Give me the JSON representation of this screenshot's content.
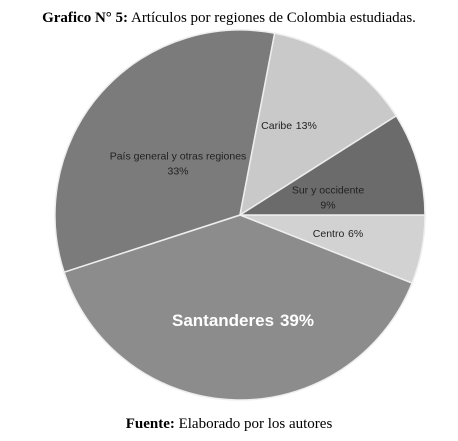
{
  "chart_data": {
    "type": "pie",
    "title_prefix": "Grafico N° 5:",
    "title": "Artículos por regiones de Colombia estudiadas.",
    "source_prefix": "Fuente:",
    "source": "Elaborado por los autores",
    "categories": [
      "Centro",
      "Santanderes",
      "País general y otras regiones",
      "Caribe",
      "Sur y occidente"
    ],
    "values": [
      6,
      39,
      33,
      13,
      9
    ],
    "value_labels": [
      "6%",
      "39%",
      "33%",
      "13%",
      "9%"
    ],
    "colors": [
      "#d2d2d2",
      "#8c8c8c",
      "#7b7b7b",
      "#c9c9c9",
      "#6b6b6b"
    ]
  }
}
